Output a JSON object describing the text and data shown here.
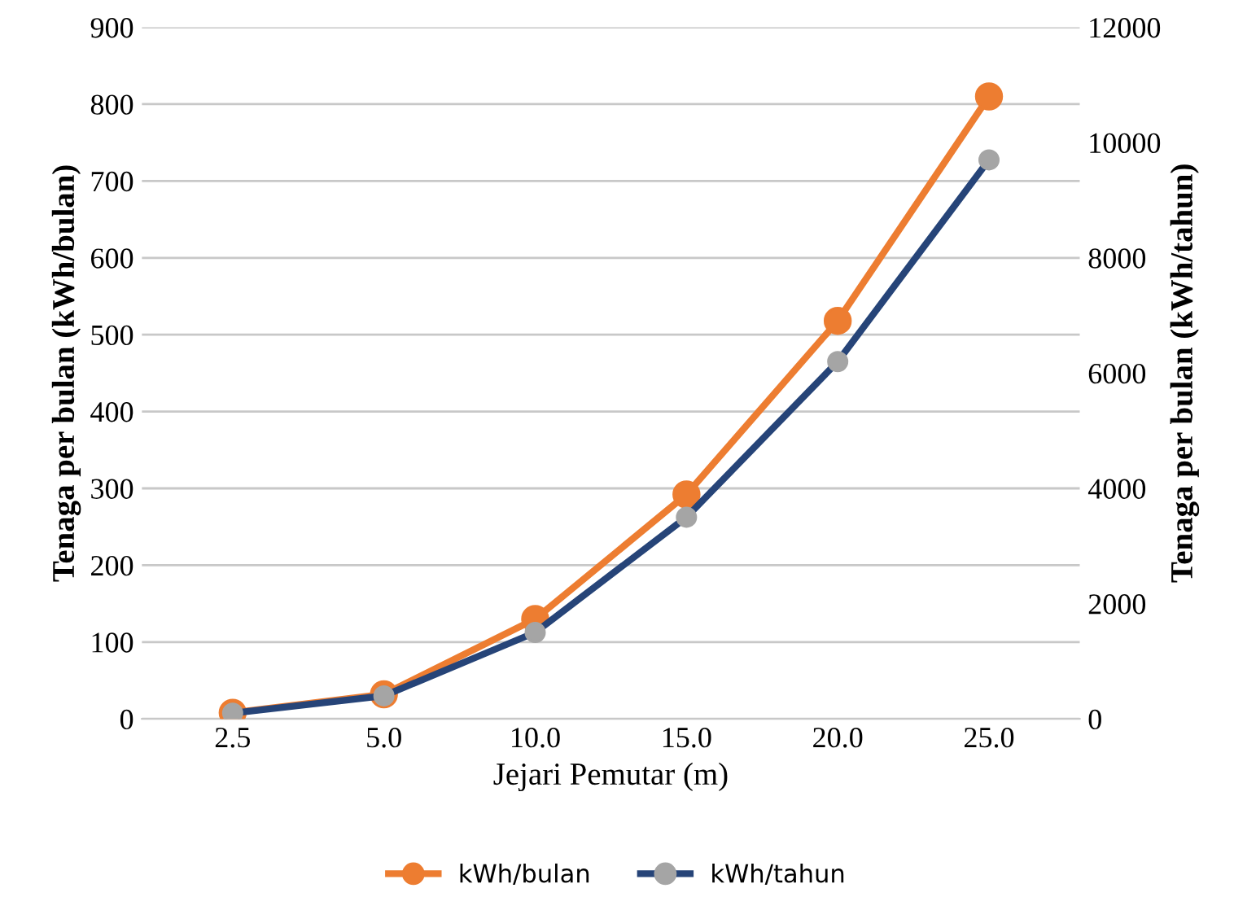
{
  "chart_data": {
    "type": "line",
    "xlabel": "Jejari Pemutar (m)",
    "ylabel": "Tenaga per bulan (kWh/bulan)",
    "y2label": "Tenaga per bulan (kWh/tahun)",
    "categories": [
      "2.5",
      "5.0",
      "10.0",
      "15.0",
      "20.0",
      "25.0"
    ],
    "series": [
      {
        "name": "kWh/bulan",
        "color": "#ed7d31",
        "values": [
          8,
          32,
          130,
          292,
          518,
          810
        ]
      },
      {
        "name": "kWh/tahun",
        "color": "#264478",
        "colors": [
          "#a5a5a5",
          "#a5a5a5",
          "#a5a5a5",
          "#a5a5a5",
          "#a5a5a5",
          "#a5a5a5"
        ],
        "axis": "y2",
        "values": [
          100,
          400,
          1500,
          3500,
          6200,
          9700
        ]
      }
    ],
    "ylim": [
      0,
      900
    ],
    "yticks": [
      0,
      100,
      200,
      300,
      400,
      500,
      600,
      700,
      800,
      900
    ],
    "y2lim": [
      0,
      12000
    ],
    "y2ticks": [
      0,
      2000,
      4000,
      6000,
      8000,
      10000,
      12000
    ],
    "grid": "y",
    "legend": "bottom",
    "marker": "circle",
    "line_style": "solid"
  }
}
